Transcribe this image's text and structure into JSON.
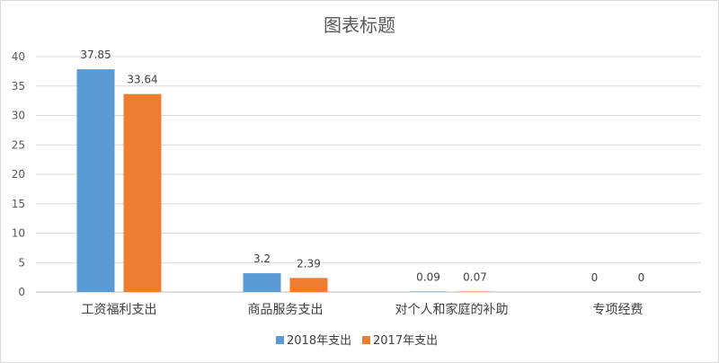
{
  "chart_data": {
    "type": "bar",
    "title": "图表标题",
    "xlabel": "",
    "ylabel": "",
    "categories": [
      "工资福利支出",
      "商品服务支出",
      "对个人和家庭的补助",
      "专项经费"
    ],
    "series": [
      {
        "name": "2018年支出",
        "values": [
          37.85,
          3.2,
          0.09,
          0
        ],
        "labels": [
          "37.85",
          "3.2",
          "0.09",
          "0"
        ],
        "color": "#5b9bd5"
      },
      {
        "name": "2017年支出",
        "values": [
          33.64,
          2.39,
          0.07,
          0
        ],
        "labels": [
          "33.64",
          "2.39",
          "0.07",
          "0"
        ],
        "color": "#ed7d31"
      }
    ],
    "ylim": [
      0,
      40
    ],
    "yticks": [
      0,
      5,
      10,
      15,
      20,
      25,
      30,
      35,
      40
    ],
    "grid": true,
    "legend_position": "bottom"
  }
}
